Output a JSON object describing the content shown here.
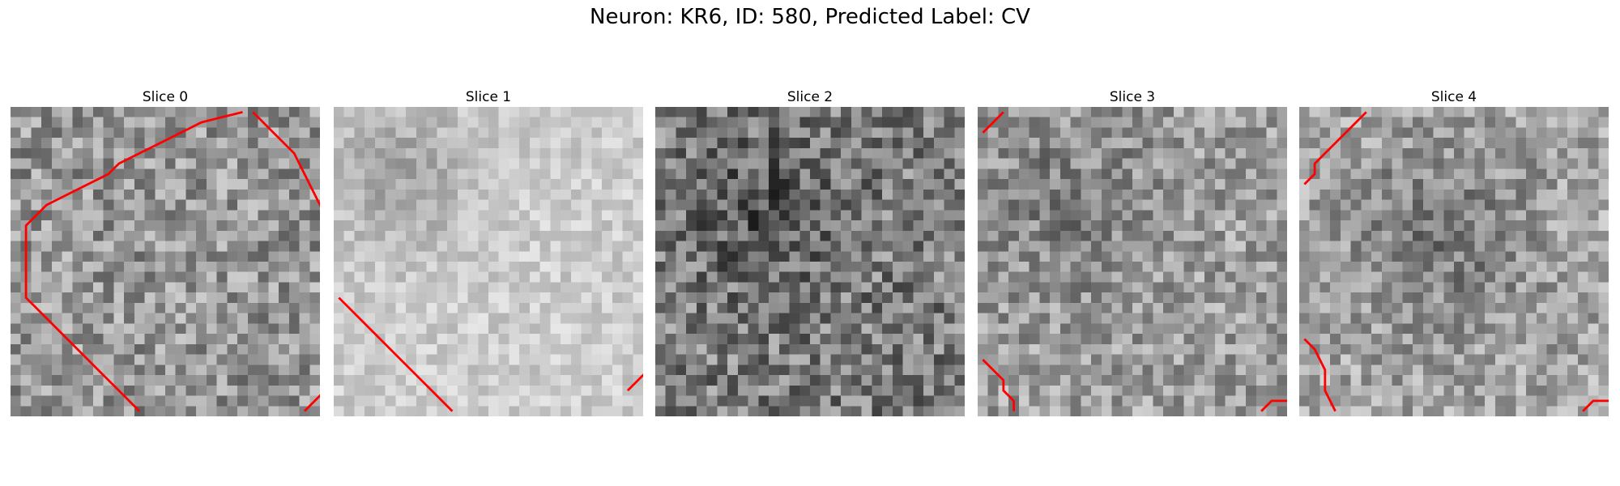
{
  "figure": {
    "title": "Neuron: KR6, ID: 580, Predicted Label: CV",
    "outline_color": "#ff0000",
    "colormap": "gray"
  },
  "panels": [
    {
      "title": "Slice 0",
      "seed": 11,
      "mean": 150,
      "contrast": 55,
      "dark_blob": null,
      "outline": [
        [
          [
            22,
            0
          ],
          [
            18,
            1
          ],
          [
            16,
            2
          ],
          [
            14,
            3
          ],
          [
            12,
            4
          ],
          [
            10,
            5
          ],
          [
            9,
            6
          ],
          [
            7,
            7
          ],
          [
            5,
            8
          ],
          [
            3,
            9
          ],
          [
            2,
            10
          ],
          [
            1,
            11
          ],
          [
            1,
            12
          ],
          [
            1,
            13
          ],
          [
            1,
            14
          ],
          [
            1,
            15
          ],
          [
            1,
            16
          ],
          [
            1,
            17
          ],
          [
            1,
            18
          ],
          [
            2,
            19
          ],
          [
            3,
            20
          ],
          [
            4,
            21
          ],
          [
            5,
            22
          ],
          [
            6,
            23
          ],
          [
            7,
            24
          ],
          [
            8,
            25
          ],
          [
            9,
            26
          ],
          [
            10,
            27
          ],
          [
            11,
            28
          ],
          [
            12,
            29
          ]
        ],
        [
          [
            29,
            0
          ],
          [
            29,
            0
          ]
        ],
        [
          [
            23,
            0
          ],
          [
            25,
            2
          ],
          [
            27,
            4
          ],
          [
            28,
            6
          ],
          [
            29,
            8
          ],
          [
            30,
            10
          ],
          [
            30,
            12
          ],
          [
            31,
            14
          ],
          [
            31,
            16
          ],
          [
            31,
            18
          ],
          [
            31,
            20
          ],
          [
            31,
            22
          ],
          [
            31,
            24
          ],
          [
            31,
            26
          ],
          [
            30,
            27
          ],
          [
            29,
            28
          ],
          [
            28,
            29
          ]
        ]
      ]
    },
    {
      "title": "Slice 1",
      "seed": 27,
      "mean": 205,
      "contrast": 26,
      "dark_blob": [
        6,
        6,
        5,
        40
      ],
      "outline": [
        [
          [
            0,
            18
          ],
          [
            1,
            19
          ],
          [
            2,
            20
          ],
          [
            4,
            22
          ],
          [
            6,
            24
          ],
          [
            8,
            26
          ],
          [
            9,
            27
          ],
          [
            10,
            28
          ],
          [
            11,
            29
          ]
        ],
        [
          [
            28,
            27
          ],
          [
            29,
            26
          ],
          [
            30,
            25
          ]
        ],
        [
          [
            30,
            0
          ],
          [
            30,
            1
          ]
        ]
      ]
    },
    {
      "title": "Slice 2",
      "seed": 43,
      "mean": 125,
      "contrast": 62,
      "dark_blob": [
        10,
        10,
        5,
        40
      ],
      "outline": []
    },
    {
      "title": "Slice 3",
      "seed": 59,
      "mean": 158,
      "contrast": 50,
      "dark_blob": [
        8,
        9,
        6,
        30
      ],
      "outline": [
        [
          [
            0,
            2
          ],
          [
            1,
            1
          ],
          [
            2,
            0
          ]
        ],
        [
          [
            0,
            24
          ],
          [
            1,
            25
          ],
          [
            2,
            26
          ],
          [
            2,
            27
          ],
          [
            3,
            28
          ],
          [
            3,
            29
          ]
        ],
        [
          [
            27,
            29
          ],
          [
            28,
            28
          ],
          [
            29,
            28
          ],
          [
            30,
            28
          ]
        ]
      ]
    },
    {
      "title": "Slice 4",
      "seed": 73,
      "mean": 165,
      "contrast": 48,
      "dark_blob": [
        13,
        12,
        6,
        45
      ],
      "outline": [
        [
          [
            6,
            0
          ],
          [
            5,
            1
          ],
          [
            4,
            2
          ],
          [
            3,
            3
          ],
          [
            2,
            4
          ],
          [
            1,
            5
          ],
          [
            1,
            6
          ],
          [
            0,
            7
          ]
        ],
        [
          [
            0,
            22
          ],
          [
            1,
            23
          ],
          [
            2,
            25
          ],
          [
            2,
            27
          ],
          [
            3,
            29
          ]
        ],
        [
          [
            27,
            29
          ],
          [
            28,
            28
          ],
          [
            29,
            28
          ],
          [
            30,
            28
          ]
        ]
      ]
    }
  ]
}
